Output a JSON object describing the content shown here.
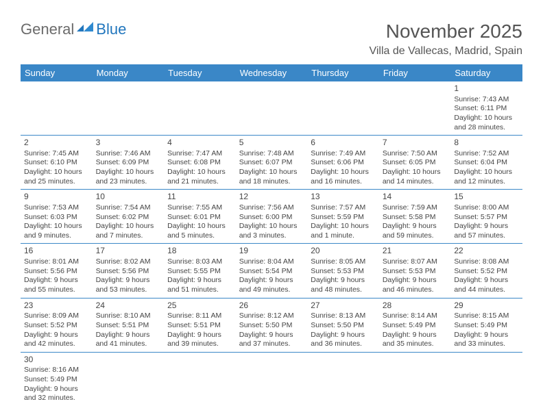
{
  "logo": {
    "part1": "General",
    "part2": "Blue"
  },
  "title": "November 2025",
  "location": "Villa de Vallecas, Madrid, Spain",
  "colors": {
    "header_bg": "#3a87c7",
    "header_text": "#ffffff",
    "border": "#3a87c7",
    "logo_gray": "#6b6b6b",
    "logo_blue": "#2176bd",
    "text": "#444444",
    "title_text": "#555555"
  },
  "weekdays": [
    "Sunday",
    "Monday",
    "Tuesday",
    "Wednesday",
    "Thursday",
    "Friday",
    "Saturday"
  ],
  "weeks": [
    [
      null,
      null,
      null,
      null,
      null,
      null,
      {
        "n": "1",
        "sr": "Sunrise: 7:43 AM",
        "ss": "Sunset: 6:11 PM",
        "dl1": "Daylight: 10 hours",
        "dl2": "and 28 minutes."
      }
    ],
    [
      {
        "n": "2",
        "sr": "Sunrise: 7:45 AM",
        "ss": "Sunset: 6:10 PM",
        "dl1": "Daylight: 10 hours",
        "dl2": "and 25 minutes."
      },
      {
        "n": "3",
        "sr": "Sunrise: 7:46 AM",
        "ss": "Sunset: 6:09 PM",
        "dl1": "Daylight: 10 hours",
        "dl2": "and 23 minutes."
      },
      {
        "n": "4",
        "sr": "Sunrise: 7:47 AM",
        "ss": "Sunset: 6:08 PM",
        "dl1": "Daylight: 10 hours",
        "dl2": "and 21 minutes."
      },
      {
        "n": "5",
        "sr": "Sunrise: 7:48 AM",
        "ss": "Sunset: 6:07 PM",
        "dl1": "Daylight: 10 hours",
        "dl2": "and 18 minutes."
      },
      {
        "n": "6",
        "sr": "Sunrise: 7:49 AM",
        "ss": "Sunset: 6:06 PM",
        "dl1": "Daylight: 10 hours",
        "dl2": "and 16 minutes."
      },
      {
        "n": "7",
        "sr": "Sunrise: 7:50 AM",
        "ss": "Sunset: 6:05 PM",
        "dl1": "Daylight: 10 hours",
        "dl2": "and 14 minutes."
      },
      {
        "n": "8",
        "sr": "Sunrise: 7:52 AM",
        "ss": "Sunset: 6:04 PM",
        "dl1": "Daylight: 10 hours",
        "dl2": "and 12 minutes."
      }
    ],
    [
      {
        "n": "9",
        "sr": "Sunrise: 7:53 AM",
        "ss": "Sunset: 6:03 PM",
        "dl1": "Daylight: 10 hours",
        "dl2": "and 9 minutes."
      },
      {
        "n": "10",
        "sr": "Sunrise: 7:54 AM",
        "ss": "Sunset: 6:02 PM",
        "dl1": "Daylight: 10 hours",
        "dl2": "and 7 minutes."
      },
      {
        "n": "11",
        "sr": "Sunrise: 7:55 AM",
        "ss": "Sunset: 6:01 PM",
        "dl1": "Daylight: 10 hours",
        "dl2": "and 5 minutes."
      },
      {
        "n": "12",
        "sr": "Sunrise: 7:56 AM",
        "ss": "Sunset: 6:00 PM",
        "dl1": "Daylight: 10 hours",
        "dl2": "and 3 minutes."
      },
      {
        "n": "13",
        "sr": "Sunrise: 7:57 AM",
        "ss": "Sunset: 5:59 PM",
        "dl1": "Daylight: 10 hours",
        "dl2": "and 1 minute."
      },
      {
        "n": "14",
        "sr": "Sunrise: 7:59 AM",
        "ss": "Sunset: 5:58 PM",
        "dl1": "Daylight: 9 hours",
        "dl2": "and 59 minutes."
      },
      {
        "n": "15",
        "sr": "Sunrise: 8:00 AM",
        "ss": "Sunset: 5:57 PM",
        "dl1": "Daylight: 9 hours",
        "dl2": "and 57 minutes."
      }
    ],
    [
      {
        "n": "16",
        "sr": "Sunrise: 8:01 AM",
        "ss": "Sunset: 5:56 PM",
        "dl1": "Daylight: 9 hours",
        "dl2": "and 55 minutes."
      },
      {
        "n": "17",
        "sr": "Sunrise: 8:02 AM",
        "ss": "Sunset: 5:56 PM",
        "dl1": "Daylight: 9 hours",
        "dl2": "and 53 minutes."
      },
      {
        "n": "18",
        "sr": "Sunrise: 8:03 AM",
        "ss": "Sunset: 5:55 PM",
        "dl1": "Daylight: 9 hours",
        "dl2": "and 51 minutes."
      },
      {
        "n": "19",
        "sr": "Sunrise: 8:04 AM",
        "ss": "Sunset: 5:54 PM",
        "dl1": "Daylight: 9 hours",
        "dl2": "and 49 minutes."
      },
      {
        "n": "20",
        "sr": "Sunrise: 8:05 AM",
        "ss": "Sunset: 5:53 PM",
        "dl1": "Daylight: 9 hours",
        "dl2": "and 48 minutes."
      },
      {
        "n": "21",
        "sr": "Sunrise: 8:07 AM",
        "ss": "Sunset: 5:53 PM",
        "dl1": "Daylight: 9 hours",
        "dl2": "and 46 minutes."
      },
      {
        "n": "22",
        "sr": "Sunrise: 8:08 AM",
        "ss": "Sunset: 5:52 PM",
        "dl1": "Daylight: 9 hours",
        "dl2": "and 44 minutes."
      }
    ],
    [
      {
        "n": "23",
        "sr": "Sunrise: 8:09 AM",
        "ss": "Sunset: 5:52 PM",
        "dl1": "Daylight: 9 hours",
        "dl2": "and 42 minutes."
      },
      {
        "n": "24",
        "sr": "Sunrise: 8:10 AM",
        "ss": "Sunset: 5:51 PM",
        "dl1": "Daylight: 9 hours",
        "dl2": "and 41 minutes."
      },
      {
        "n": "25",
        "sr": "Sunrise: 8:11 AM",
        "ss": "Sunset: 5:51 PM",
        "dl1": "Daylight: 9 hours",
        "dl2": "and 39 minutes."
      },
      {
        "n": "26",
        "sr": "Sunrise: 8:12 AM",
        "ss": "Sunset: 5:50 PM",
        "dl1": "Daylight: 9 hours",
        "dl2": "and 37 minutes."
      },
      {
        "n": "27",
        "sr": "Sunrise: 8:13 AM",
        "ss": "Sunset: 5:50 PM",
        "dl1": "Daylight: 9 hours",
        "dl2": "and 36 minutes."
      },
      {
        "n": "28",
        "sr": "Sunrise: 8:14 AM",
        "ss": "Sunset: 5:49 PM",
        "dl1": "Daylight: 9 hours",
        "dl2": "and 35 minutes."
      },
      {
        "n": "29",
        "sr": "Sunrise: 8:15 AM",
        "ss": "Sunset: 5:49 PM",
        "dl1": "Daylight: 9 hours",
        "dl2": "and 33 minutes."
      }
    ],
    [
      {
        "n": "30",
        "sr": "Sunrise: 8:16 AM",
        "ss": "Sunset: 5:49 PM",
        "dl1": "Daylight: 9 hours",
        "dl2": "and 32 minutes."
      },
      null,
      null,
      null,
      null,
      null,
      null
    ]
  ]
}
